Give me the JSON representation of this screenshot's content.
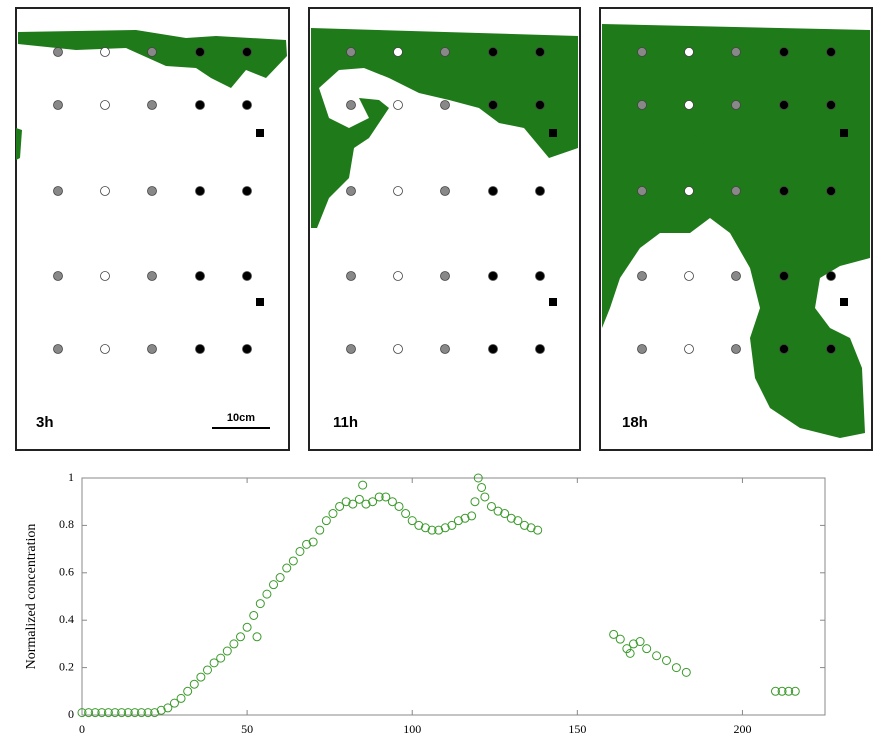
{
  "panels": [
    {
      "label": "3h"
    },
    {
      "label": "11h"
    },
    {
      "label": "18h"
    }
  ],
  "scale_bar": "10cm",
  "chart_data": {
    "type": "scatter",
    "y_label": "Normalized concentration",
    "color": "#3a9a2a",
    "xlim": [
      0,
      225
    ],
    "xticks": [
      0,
      50,
      100,
      150,
      200
    ],
    "ylim": [
      0,
      1
    ],
    "yticks": [
      0,
      0.2,
      0.4,
      0.6,
      0.8,
      1
    ],
    "x": [
      0,
      2,
      4,
      6,
      8,
      10,
      12,
      14,
      16,
      18,
      20,
      22,
      24,
      26,
      28,
      30,
      32,
      34,
      36,
      38,
      40,
      42,
      44,
      46,
      48,
      50,
      52,
      53,
      54,
      56,
      58,
      60,
      62,
      64,
      66,
      68,
      70,
      72,
      74,
      76,
      78,
      80,
      82,
      84,
      85,
      86,
      88,
      90,
      92,
      94,
      96,
      98,
      100,
      102,
      104,
      106,
      108,
      110,
      112,
      114,
      116,
      118,
      119,
      120,
      121,
      122,
      124,
      126,
      128,
      130,
      132,
      134,
      136,
      138,
      161,
      163,
      165,
      166,
      167,
      169,
      171,
      174,
      177,
      180,
      183,
      210,
      212,
      214,
      216
    ],
    "y": [
      0.01,
      0.01,
      0.01,
      0.01,
      0.01,
      0.01,
      0.01,
      0.01,
      0.01,
      0.01,
      0.01,
      0.01,
      0.02,
      0.03,
      0.05,
      0.07,
      0.1,
      0.13,
      0.16,
      0.19,
      0.22,
      0.24,
      0.27,
      0.3,
      0.33,
      0.37,
      0.42,
      0.33,
      0.47,
      0.51,
      0.55,
      0.58,
      0.62,
      0.65,
      0.69,
      0.72,
      0.73,
      0.78,
      0.82,
      0.85,
      0.88,
      0.9,
      0.89,
      0.91,
      0.97,
      0.89,
      0.9,
      0.92,
      0.92,
      0.9,
      0.88,
      0.85,
      0.82,
      0.8,
      0.79,
      0.78,
      0.78,
      0.79,
      0.8,
      0.82,
      0.83,
      0.84,
      0.9,
      1,
      0.96,
      0.92,
      0.88,
      0.86,
      0.85,
      0.83,
      0.82,
      0.8,
      0.79,
      0.78,
      0.34,
      0.32,
      0.28,
      0.26,
      0.3,
      0.31,
      0.28,
      0.25,
      0.23,
      0.2,
      0.18,
      0.1,
      0.1,
      0.1,
      0.1
    ]
  }
}
